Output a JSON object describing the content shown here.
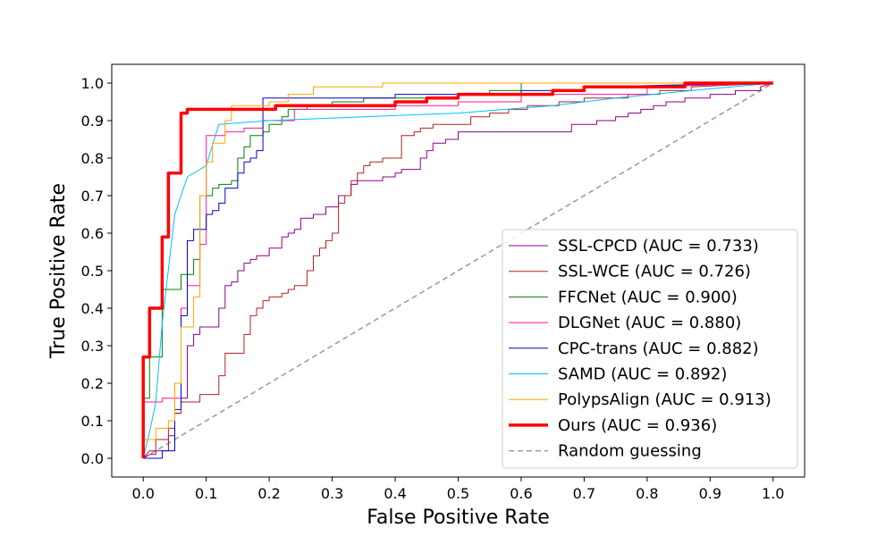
{
  "chart_data": {
    "type": "line",
    "title": "",
    "xlabel": "False Positive Rate",
    "ylabel": "True Positive Rate",
    "xlim": [
      -0.05,
      1.05
    ],
    "ylim": [
      -0.05,
      1.05
    ],
    "xticks": [
      "0.0",
      "0.1",
      "0.2",
      "0.3",
      "0.4",
      "0.5",
      "0.6",
      "0.7",
      "0.8",
      "0.9",
      "1.0"
    ],
    "yticks": [
      "0.0",
      "0.1",
      "0.2",
      "0.3",
      "0.4",
      "0.5",
      "0.6",
      "0.7",
      "0.8",
      "0.9",
      "1.0"
    ],
    "grid": false,
    "legend_position": "lower-right",
    "series": [
      {
        "name": "SSL-CPCD (AUC = 0.733)",
        "color": "#8b008b",
        "width": 1,
        "x": [
          0.0,
          0.01,
          0.02,
          0.02,
          0.04,
          0.04,
          0.05,
          0.05,
          0.06,
          0.06,
          0.07,
          0.07,
          0.08,
          0.08,
          0.09,
          0.09,
          0.12,
          0.12,
          0.13,
          0.13,
          0.14,
          0.14,
          0.15,
          0.15,
          0.16,
          0.16,
          0.17,
          0.17,
          0.18,
          0.18,
          0.2,
          0.2,
          0.22,
          0.22,
          0.23,
          0.23,
          0.24,
          0.24,
          0.25,
          0.25,
          0.27,
          0.27,
          0.29,
          0.29,
          0.31,
          0.31,
          0.33,
          0.33,
          0.34,
          0.34,
          0.38,
          0.38,
          0.4,
          0.4,
          0.41,
          0.41,
          0.44,
          0.44,
          0.45,
          0.45,
          0.46,
          0.46,
          0.48,
          0.48,
          0.5,
          0.5,
          0.54,
          0.54,
          0.68,
          0.68,
          0.72,
          0.72,
          0.75,
          0.75,
          0.77,
          0.77,
          0.79,
          0.79,
          0.81,
          0.81,
          0.83,
          0.83,
          0.86,
          0.86,
          0.9,
          0.9,
          0.94,
          0.94,
          0.98,
          0.98,
          1.0
        ],
        "y": [
          0.0,
          0.01,
          0.01,
          0.02,
          0.02,
          0.06,
          0.06,
          0.12,
          0.12,
          0.16,
          0.16,
          0.3,
          0.3,
          0.33,
          0.33,
          0.35,
          0.35,
          0.4,
          0.4,
          0.46,
          0.46,
          0.47,
          0.47,
          0.5,
          0.5,
          0.52,
          0.52,
          0.53,
          0.53,
          0.54,
          0.54,
          0.56,
          0.56,
          0.59,
          0.59,
          0.6,
          0.6,
          0.61,
          0.61,
          0.64,
          0.64,
          0.65,
          0.65,
          0.67,
          0.67,
          0.7,
          0.7,
          0.73,
          0.73,
          0.74,
          0.74,
          0.75,
          0.75,
          0.76,
          0.76,
          0.77,
          0.77,
          0.8,
          0.8,
          0.82,
          0.82,
          0.84,
          0.84,
          0.85,
          0.85,
          0.87,
          0.87,
          0.87,
          0.87,
          0.89,
          0.89,
          0.9,
          0.9,
          0.91,
          0.91,
          0.92,
          0.92,
          0.93,
          0.93,
          0.94,
          0.94,
          0.95,
          0.95,
          0.96,
          0.96,
          0.97,
          0.97,
          0.98,
          0.98,
          0.99,
          1.0
        ]
      },
      {
        "name": "SSL-WCE (AUC = 0.726)",
        "color": "#b22222",
        "width": 1,
        "x": [
          0.0,
          0.01,
          0.02,
          0.02,
          0.04,
          0.04,
          0.05,
          0.05,
          0.06,
          0.06,
          0.09,
          0.09,
          0.12,
          0.12,
          0.13,
          0.13,
          0.16,
          0.16,
          0.17,
          0.17,
          0.18,
          0.18,
          0.19,
          0.19,
          0.2,
          0.2,
          0.22,
          0.22,
          0.23,
          0.23,
          0.24,
          0.24,
          0.26,
          0.26,
          0.27,
          0.27,
          0.27,
          0.27,
          0.28,
          0.28,
          0.29,
          0.29,
          0.3,
          0.3,
          0.31,
          0.31,
          0.32,
          0.32,
          0.33,
          0.33,
          0.34,
          0.34,
          0.35,
          0.35,
          0.36,
          0.36,
          0.38,
          0.38,
          0.41,
          0.41,
          0.43,
          0.43,
          0.44,
          0.44,
          0.46,
          0.46,
          0.49,
          0.49,
          0.52,
          0.52,
          0.55,
          0.55,
          0.58,
          0.58,
          0.61,
          0.61,
          0.66,
          0.66,
          0.7,
          0.7,
          0.77,
          0.77,
          0.82,
          0.82,
          0.87,
          0.87,
          1.0
        ],
        "y": [
          0.0,
          0.02,
          0.02,
          0.05,
          0.05,
          0.08,
          0.08,
          0.12,
          0.12,
          0.15,
          0.15,
          0.17,
          0.17,
          0.22,
          0.22,
          0.28,
          0.28,
          0.33,
          0.33,
          0.38,
          0.38,
          0.4,
          0.4,
          0.42,
          0.42,
          0.43,
          0.43,
          0.44,
          0.44,
          0.45,
          0.45,
          0.46,
          0.46,
          0.5,
          0.5,
          0.5,
          0.5,
          0.54,
          0.54,
          0.56,
          0.56,
          0.58,
          0.58,
          0.6,
          0.6,
          0.68,
          0.68,
          0.7,
          0.7,
          0.74,
          0.74,
          0.76,
          0.76,
          0.78,
          0.78,
          0.79,
          0.79,
          0.8,
          0.8,
          0.86,
          0.86,
          0.87,
          0.87,
          0.88,
          0.88,
          0.89,
          0.89,
          0.89,
          0.89,
          0.91,
          0.91,
          0.92,
          0.92,
          0.93,
          0.93,
          0.94,
          0.94,
          0.95,
          0.95,
          0.96,
          0.96,
          0.97,
          0.97,
          0.98,
          0.98,
          0.99,
          1.0
        ]
      },
      {
        "name": "FFCNet (AUC = 0.900)",
        "color": "#008000",
        "width": 1,
        "x": [
          0.0,
          0.0,
          0.01,
          0.01,
          0.03,
          0.03,
          0.06,
          0.06,
          0.08,
          0.08,
          0.09,
          0.09,
          0.11,
          0.11,
          0.12,
          0.12,
          0.14,
          0.14,
          0.15,
          0.15,
          0.16,
          0.16,
          0.17,
          0.17,
          0.19,
          0.19,
          0.2,
          0.2,
          0.22,
          0.22,
          0.23,
          0.23,
          0.26,
          0.26,
          0.3,
          0.3,
          0.35,
          0.35,
          0.5,
          0.5,
          0.55,
          0.55,
          0.6,
          0.6,
          1.0
        ],
        "y": [
          0.0,
          0.16,
          0.16,
          0.27,
          0.27,
          0.45,
          0.45,
          0.49,
          0.49,
          0.53,
          0.53,
          0.7,
          0.7,
          0.72,
          0.72,
          0.73,
          0.73,
          0.74,
          0.74,
          0.8,
          0.8,
          0.83,
          0.83,
          0.86,
          0.86,
          0.87,
          0.87,
          0.89,
          0.89,
          0.91,
          0.91,
          0.93,
          0.93,
          0.94,
          0.94,
          0.95,
          0.95,
          0.96,
          0.96,
          0.97,
          0.97,
          0.98,
          0.98,
          1.0,
          1.0
        ]
      },
      {
        "name": "DLGNet (AUC = 0.880)",
        "color": "#ff1493",
        "width": 1,
        "x": [
          0.0,
          0.0,
          0.03,
          0.03,
          0.06,
          0.06,
          0.07,
          0.07,
          0.09,
          0.09,
          0.1,
          0.1,
          0.13,
          0.13,
          0.16,
          0.16,
          0.19,
          0.19,
          0.24,
          0.24,
          0.4,
          0.4,
          0.5,
          0.5,
          0.6,
          0.6,
          0.8,
          0.8,
          1.0
        ],
        "y": [
          0.0,
          0.15,
          0.15,
          0.16,
          0.16,
          0.4,
          0.4,
          0.46,
          0.46,
          0.57,
          0.57,
          0.86,
          0.86,
          0.87,
          0.87,
          0.88,
          0.88,
          0.9,
          0.9,
          0.93,
          0.93,
          0.94,
          0.94,
          0.95,
          0.95,
          0.97,
          0.97,
          0.99,
          1.0
        ]
      },
      {
        "name": "CPC-trans (AUC = 0.882)",
        "color": "#0000cd",
        "width": 1,
        "x": [
          0.0,
          0.02,
          0.03,
          0.03,
          0.05,
          0.05,
          0.06,
          0.06,
          0.07,
          0.07,
          0.08,
          0.08,
          0.1,
          0.1,
          0.11,
          0.11,
          0.12,
          0.12,
          0.13,
          0.13,
          0.15,
          0.15,
          0.16,
          0.16,
          0.17,
          0.17,
          0.18,
          0.18,
          0.19,
          0.19,
          0.2,
          0.2,
          0.25,
          0.25,
          0.3,
          0.3,
          0.4,
          0.4,
          0.6,
          0.6,
          0.7,
          0.7,
          1.0
        ],
        "y": [
          0.0,
          0.0,
          0.0,
          0.02,
          0.02,
          0.13,
          0.13,
          0.38,
          0.38,
          0.58,
          0.58,
          0.61,
          0.61,
          0.65,
          0.65,
          0.66,
          0.66,
          0.68,
          0.68,
          0.72,
          0.72,
          0.76,
          0.76,
          0.79,
          0.79,
          0.8,
          0.8,
          0.82,
          0.82,
          0.96,
          0.96,
          0.96,
          0.96,
          0.96,
          0.96,
          0.96,
          0.96,
          0.97,
          0.97,
          0.98,
          0.98,
          0.99,
          1.0
        ]
      },
      {
        "name": "SAMD (AUC = 0.892)",
        "color": "#00bfff",
        "width": 1,
        "x": [
          0.0,
          0.01,
          0.01,
          0.02,
          0.02,
          0.03,
          0.03,
          0.05,
          0.05,
          0.07,
          0.07,
          0.1,
          0.1,
          0.12,
          0.12,
          0.2,
          0.2,
          0.35,
          0.35,
          0.5,
          0.5,
          0.65,
          0.65,
          0.75,
          0.75,
          0.87,
          0.87,
          1.0
        ],
        "y": [
          0.0,
          0.07,
          0.07,
          0.15,
          0.15,
          0.36,
          0.36,
          0.65,
          0.65,
          0.75,
          0.75,
          0.78,
          0.78,
          0.89,
          0.89,
          0.9,
          0.9,
          0.91,
          0.91,
          0.92,
          0.92,
          0.94,
          0.94,
          0.96,
          0.96,
          0.98,
          0.98,
          1.0
        ]
      },
      {
        "name": "PolypsAlign (AUC = 0.913)",
        "color": "#ffa500",
        "width": 1,
        "x": [
          0.0,
          0.0,
          0.02,
          0.02,
          0.04,
          0.04,
          0.05,
          0.05,
          0.06,
          0.06,
          0.08,
          0.08,
          0.09,
          0.09,
          0.1,
          0.1,
          0.11,
          0.11,
          0.13,
          0.13,
          0.14,
          0.14,
          0.2,
          0.2,
          0.23,
          0.23,
          0.27,
          0.27,
          0.38,
          0.38,
          0.47,
          0.47,
          0.58,
          0.58,
          0.85,
          0.85,
          1.0
        ],
        "y": [
          0.0,
          0.05,
          0.05,
          0.08,
          0.08,
          0.1,
          0.1,
          0.2,
          0.2,
          0.35,
          0.35,
          0.43,
          0.43,
          0.7,
          0.7,
          0.79,
          0.79,
          0.84,
          0.84,
          0.9,
          0.9,
          0.94,
          0.94,
          0.95,
          0.95,
          0.97,
          0.97,
          0.99,
          0.99,
          1.0,
          1.0,
          1.0,
          1.0,
          1.0,
          1.0,
          1.0,
          1.0
        ]
      },
      {
        "name": "Ours (AUC = 0.936)",
        "color": "#ff0000",
        "width": 3.5,
        "x": [
          0.0,
          0.0,
          0.01,
          0.01,
          0.03,
          0.03,
          0.04,
          0.04,
          0.06,
          0.06,
          0.07,
          0.07,
          0.21,
          0.21,
          0.4,
          0.4,
          0.45,
          0.45,
          0.5,
          0.5,
          0.55,
          0.55,
          0.6,
          0.6,
          0.65,
          0.65,
          0.7,
          0.7,
          0.86,
          0.86,
          1.0
        ],
        "y": [
          0.0,
          0.27,
          0.27,
          0.4,
          0.4,
          0.59,
          0.59,
          0.76,
          0.76,
          0.92,
          0.92,
          0.93,
          0.93,
          0.94,
          0.94,
          0.95,
          0.95,
          0.96,
          0.96,
          0.97,
          0.97,
          0.97,
          0.97,
          0.97,
          0.97,
          0.98,
          0.98,
          0.99,
          0.99,
          1.0,
          1.0
        ]
      },
      {
        "name": "Random guessing",
        "color": "#999999",
        "width": 1.5,
        "dashed": true,
        "x": [
          0.0,
          1.0
        ],
        "y": [
          0.0,
          1.0
        ]
      }
    ]
  }
}
